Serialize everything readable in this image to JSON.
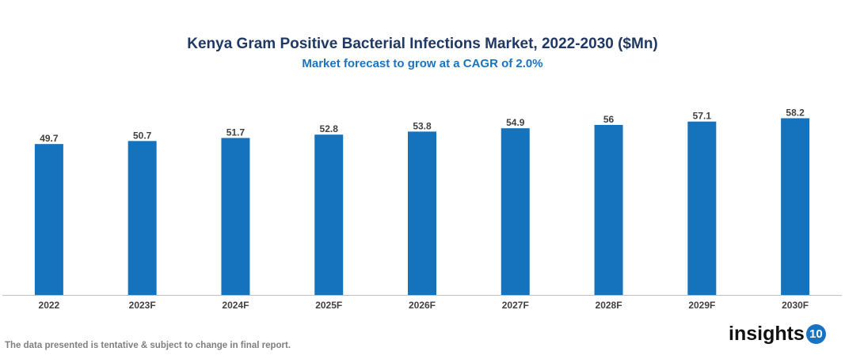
{
  "chart_data": {
    "type": "bar",
    "title": "Kenya Gram Positive Bacterial Infections Market, 2022-2030 ($Mn)",
    "subtitle": "Market forecast to grow at a CAGR of 2.0%",
    "categories": [
      "2022",
      "2023F",
      "2024F",
      "2025F",
      "2026F",
      "2027F",
      "2028F",
      "2029F",
      "2030F"
    ],
    "values": [
      49.7,
      50.7,
      51.7,
      52.8,
      53.8,
      54.9,
      56,
      57.1,
      58.2
    ],
    "data_labels": [
      "49.7",
      "50.7",
      "51.7",
      "52.8",
      "53.8",
      "54.9",
      "56",
      "57.1",
      "58.2"
    ],
    "xlabel": "",
    "ylabel": "",
    "ylim": [
      0,
      60
    ],
    "grid": false,
    "bar_color": "#1572bd"
  },
  "footer": {
    "note": "The data presented is tentative & subject to change in final report.",
    "logo_text": "insights",
    "logo_badge": "10"
  }
}
